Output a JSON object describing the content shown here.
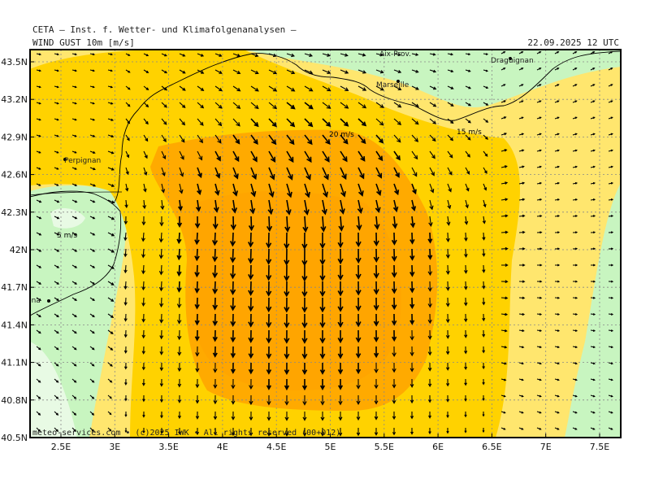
{
  "header": {
    "title": "CETA — Inst. f. Wetter- und Klimafolgenanalysen —",
    "variable": "WIND  GUST  10m  [m/s]",
    "valid_time": "22.09.2025  12  UTC"
  },
  "footer": "meteo-services.com • (c)2025 IWK • All rights reserved (00+012)",
  "axes": {
    "lon_ticks": [
      "2.5E",
      "3E",
      "3.5E",
      "4E",
      "4.5E",
      "5E",
      "5.5E",
      "6E",
      "6.5E",
      "7E",
      "7.5E"
    ],
    "lat_ticks": [
      "43.5N",
      "43.2N",
      "42.9N",
      "42.6N",
      "42.3N",
      "42N",
      "41.7N",
      "41.4N",
      "41.1N",
      "40.8N",
      "40.5N"
    ]
  },
  "cities": [
    {
      "name": "Aix-Prov."
    },
    {
      "name": "Draguignan"
    },
    {
      "name": "Marseille"
    },
    {
      "name": "Perpignan"
    },
    {
      "name": "Barcelona"
    }
  ],
  "contour_labels": [
    "20 m/s",
    "15 m/s",
    "5 m/s"
  ],
  "colors": {
    "green_light": "#c8f5c0",
    "green_pale": "#e8fae4",
    "yellow": "#ffe66e",
    "gold": "#ffd200",
    "orange": "#ffaa00",
    "frame": "#000000"
  }
}
